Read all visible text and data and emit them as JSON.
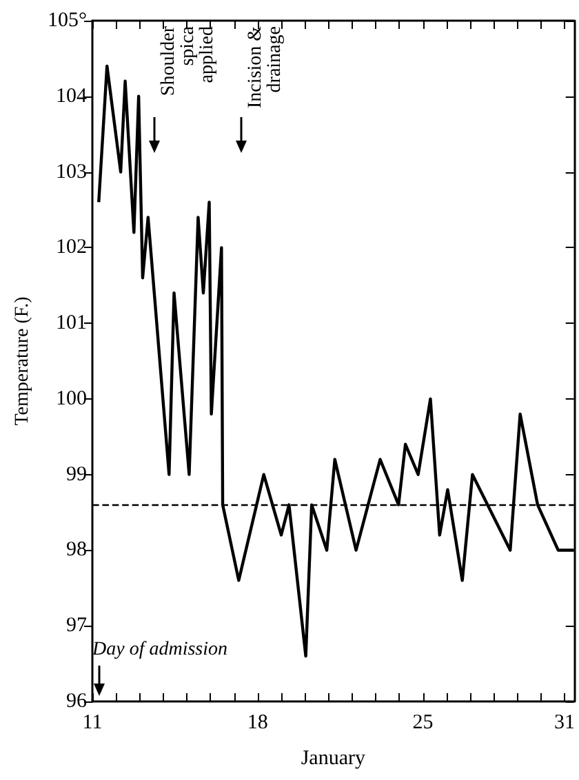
{
  "chart_data": {
    "type": "line",
    "xlabel": "January",
    "ylabel": "Temperature (F.)",
    "x": [
      11.27,
      11.62,
      12.2,
      12.39,
      12.76,
      12.96,
      13.13,
      13.36,
      14.25,
      14.46,
      15.1,
      15.48,
      15.7,
      15.95,
      16.04,
      16.47,
      16.52,
      17.2,
      18.26,
      19.0,
      19.33,
      20.04,
      20.29,
      20.93,
      21.27,
      22.17,
      23.19,
      23.97,
      24.26,
      24.8,
      25.32,
      25.71,
      26.05,
      26.67,
      27.1,
      28.7,
      29.12,
      29.86,
      30.73,
      31.4
    ],
    "series": [
      {
        "color": "#000000",
        "values": [
          102.6,
          104.4,
          103.0,
          104.2,
          102.2,
          104.0,
          101.6,
          102.4,
          99.0,
          101.4,
          99.0,
          102.4,
          101.4,
          102.6,
          99.8,
          102.0,
          98.6,
          97.6,
          99.0,
          98.2,
          98.6,
          96.6,
          98.6,
          98.0,
          99.2,
          98.0,
          99.2,
          98.6,
          99.4,
          99.0,
          100.0,
          98.2,
          98.8,
          97.6,
          99.0,
          98.0,
          99.8,
          98.6,
          98.0,
          98.0
        ]
      }
    ],
    "xlim": [
      11,
      31.4
    ],
    "xticks": [
      11,
      {
        "value": 12,
        "label": null
      },
      {
        "value": 13,
        "label": null
      },
      {
        "value": 14,
        "label": null
      },
      {
        "value": 15,
        "label": null
      },
      {
        "value": 16,
        "label": null
      },
      {
        "value": 17,
        "label": null
      },
      18,
      {
        "value": 19,
        "label": null
      },
      {
        "value": 20,
        "label": null
      },
      {
        "value": 21,
        "label": null
      },
      {
        "value": 22,
        "label": null
      },
      {
        "value": 23,
        "label": null
      },
      {
        "value": 24,
        "label": null
      },
      25,
      {
        "value": 26,
        "label": null
      },
      {
        "value": 27,
        "label": null
      },
      {
        "value": 28,
        "label": null
      },
      {
        "value": 29,
        "label": null
      },
      {
        "value": 30,
        "label": null
      },
      31
    ],
    "ylim": [
      96,
      105
    ],
    "yticks": [
      96,
      97,
      98,
      99,
      100,
      101,
      102,
      103,
      104,
      {
        "value": 105,
        "label": "105°"
      }
    ],
    "ref_lines": [
      {
        "axis": "y",
        "value": 98.6,
        "color": "#000000",
        "line_style": "dashed"
      }
    ],
    "annotations": [
      "Shoulder spica applied",
      "Incision & drainage",
      "Day of admission"
    ],
    "marker": "none",
    "line_style": "solid",
    "grid": false
  }
}
